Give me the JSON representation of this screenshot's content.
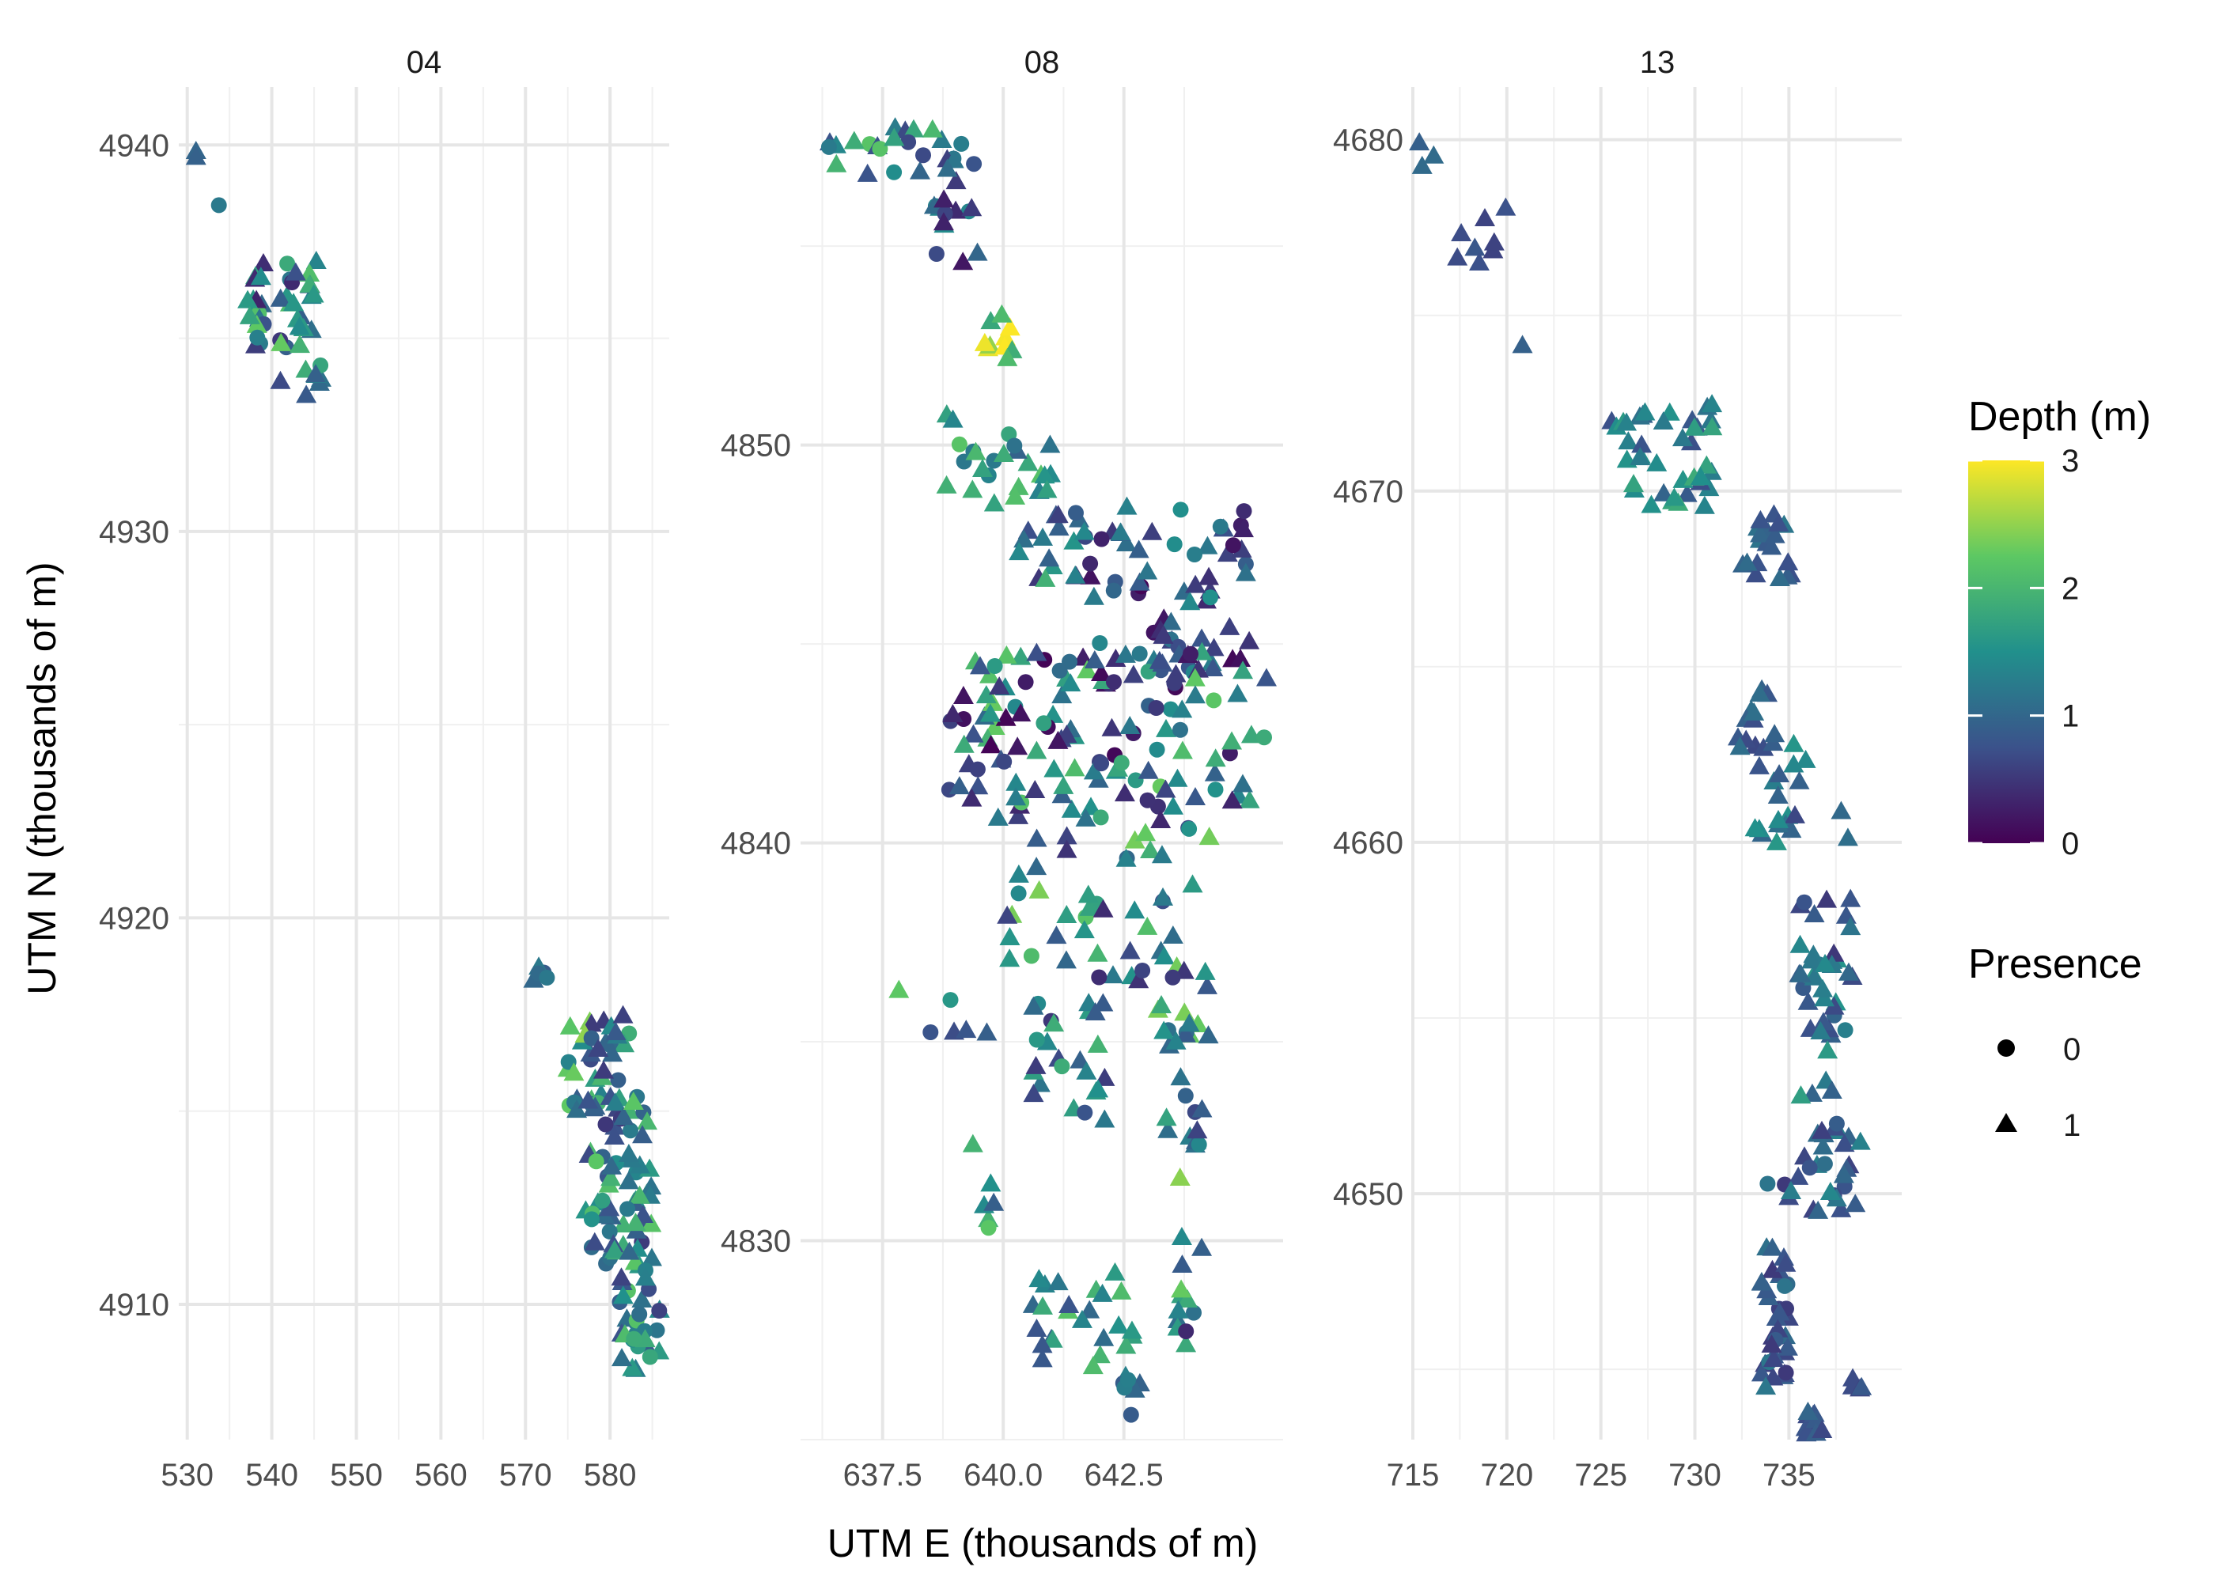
{
  "colors": {
    "viridis": [
      "#440154",
      "#3b528b",
      "#21908c",
      "#5dc863",
      "#fde725"
    ],
    "grid_major": "#e6e6e6",
    "grid_minor": "#f0f0f0"
  },
  "chart_data": {
    "type": "scatter",
    "xlabel": "UTM E (thousands of m)",
    "ylabel": "UTM N (thousands of m)",
    "grid": true,
    "legend": {
      "position": "right",
      "color": {
        "title": "Depth (m)",
        "min": 0,
        "max": 3,
        "ticks": [
          "0",
          "1",
          "2",
          "3"
        ]
      },
      "shape": {
        "title": "Presence",
        "entries": [
          {
            "label": "0",
            "shape": "circle"
          },
          {
            "label": "1",
            "shape": "triangle"
          }
        ]
      }
    },
    "panels": [
      {
        "title": "04",
        "xlim": [
          529,
          587
        ],
        "ylim": [
          4906.5,
          4941.5
        ],
        "xticks": [
          530,
          540,
          550,
          560,
          570,
          580
        ],
        "xtick_labels": [
          "530",
          "540",
          "550",
          "560",
          "570",
          "580"
        ],
        "yticks": [
          4910,
          4920,
          4930,
          4940
        ],
        "ytick_labels": [
          "4910",
          "4920",
          "4930",
          "4940"
        ],
        "clusters": [
          {
            "x": [
              530.5,
              531.5
            ],
            "y": [
              4939.3,
              4939.9
            ],
            "n": 2,
            "depth": [
              0.8,
              1.1
            ],
            "shape": "tri"
          },
          {
            "x": [
              533.5,
              534.5
            ],
            "y": [
              4938.3,
              4938.7
            ],
            "n": 1,
            "depth": [
              1.1,
              1.3
            ],
            "shape": "circle"
          },
          {
            "x": [
              537,
              545.5
            ],
            "y": [
              4934.5,
              4937.0
            ],
            "n": 40,
            "depth": [
              0.3,
              2.3
            ],
            "shape": "mixed"
          },
          {
            "x": [
              541,
              546
            ],
            "y": [
              4933.3,
              4934.4
            ],
            "n": 8,
            "depth": [
              0.4,
              1.9
            ],
            "shape": "mixed"
          },
          {
            "x": [
              570.5,
              573
            ],
            "y": [
              4918.2,
              4919.0
            ],
            "n": 5,
            "depth": [
              0.8,
              1.3
            ],
            "shape": "mixed"
          },
          {
            "x": [
              575,
              583
            ],
            "y": [
              4915.0,
              4917.5
            ],
            "n": 35,
            "depth": [
              0.5,
              2.5
            ],
            "shape": "mixed"
          },
          {
            "x": [
              577,
              585
            ],
            "y": [
              4911.0,
              4915.5
            ],
            "n": 70,
            "depth": [
              0.5,
              2.3
            ],
            "shape": "mixed"
          },
          {
            "x": [
              581,
              586
            ],
            "y": [
              4908.3,
              4911.0
            ],
            "n": 30,
            "depth": [
              0.6,
              2.2
            ],
            "shape": "mixed"
          }
        ]
      },
      {
        "title": "08",
        "xlim": [
          635.8,
          645.8
        ],
        "ylim": [
          4825.0,
          4859.0
        ],
        "xticks": [
          637.5,
          640.0,
          642.5
        ],
        "xtick_labels": [
          "637.5",
          "640.0",
          "642.5"
        ],
        "yticks": [
          4830,
          4840,
          4850
        ],
        "ytick_labels": [
          "4830",
          "4840",
          "4850"
        ],
        "clusters": [
          {
            "x": [
              636.3,
              639.5
            ],
            "y": [
              4856.8,
              4858.0
            ],
            "n": 22,
            "depth": [
              0.3,
              2.3
            ],
            "shape": "mixed"
          },
          {
            "x": [
              638.5,
              639.5
            ],
            "y": [
              4855.5,
              4857.2
            ],
            "n": 14,
            "depth": [
              0.0,
              1.5
            ],
            "shape": "mixed"
          },
          {
            "x": [
              638.3,
              640.0
            ],
            "y": [
              4854.5,
              4855.3
            ],
            "n": 3,
            "depth": [
              0.0,
              1.0
            ],
            "shape": "mixed"
          },
          {
            "x": [
              639.6,
              640.3
            ],
            "y": [
              4852.0,
              4853.3
            ],
            "n": 10,
            "depth": [
              1.8,
              3.0
            ],
            "shape": "tri"
          },
          {
            "x": [
              638.8,
              641.0
            ],
            "y": [
              4848.5,
              4850.8
            ],
            "n": 25,
            "depth": [
              0.8,
              2.2
            ],
            "shape": "mixed"
          },
          {
            "x": [
              640.3,
              641.5
            ],
            "y": [
              4846.5,
              4848.3
            ],
            "n": 12,
            "depth": [
              0.3,
              2.0
            ],
            "shape": "mixed"
          },
          {
            "x": [
              641.3,
              645.2
            ],
            "y": [
              4844.2,
              4848.5
            ],
            "n": 70,
            "depth": [
              0.0,
              1.5
            ],
            "shape": "mixed"
          },
          {
            "x": [
              638.8,
              645.5
            ],
            "y": [
              4840.5,
              4844.8
            ],
            "n": 130,
            "depth": [
              0.0,
              2.3
            ],
            "shape": "mixed"
          },
          {
            "x": [
              640.0,
              644.5
            ],
            "y": [
              4836.5,
              4840.5
            ],
            "n": 45,
            "depth": [
              0.4,
              2.4
            ],
            "shape": "mixed"
          },
          {
            "x": [
              637.8,
              639.8
            ],
            "y": [
              4834.5,
              4838.5
            ],
            "n": 6,
            "depth": [
              0.2,
              2.3
            ],
            "shape": "mixed"
          },
          {
            "x": [
              640.5,
              642.2
            ],
            "y": [
              4833.0,
              4836.0
            ],
            "n": 25,
            "depth": [
              0.4,
              2.0
            ],
            "shape": "mixed"
          },
          {
            "x": [
              643.2,
              644.3
            ],
            "y": [
              4831.5,
              4837.0
            ],
            "n": 30,
            "depth": [
              0.4,
              2.5
            ],
            "shape": "mixed"
          },
          {
            "x": [
              639.3,
              639.9
            ],
            "y": [
              4829.8,
              4832.5
            ],
            "n": 6,
            "depth": [
              0.8,
              2.3
            ],
            "shape": "mixed"
          },
          {
            "x": [
              640.5,
              642.8
            ],
            "y": [
              4826.8,
              4829.2
            ],
            "n": 25,
            "depth": [
              0.7,
              2.3
            ],
            "shape": "tri"
          },
          {
            "x": [
              642.4,
              643.0
            ],
            "y": [
              4825.6,
              4826.8
            ],
            "n": 8,
            "depth": [
              0.8,
              1.6
            ],
            "shape": "mixed"
          },
          {
            "x": [
              643.6,
              644.3
            ],
            "y": [
              4827.3,
              4830.5
            ],
            "n": 12,
            "depth": [
              0.2,
              2.5
            ],
            "shape": "mixed"
          }
        ]
      },
      {
        "title": "13",
        "xlim": [
          715,
          741
        ],
        "ylim": [
          4643.0,
          4681.5
        ],
        "xticks": [
          715,
          720,
          725,
          730,
          735
        ],
        "xtick_labels": [
          "715",
          "720",
          "725",
          "730",
          "735"
        ],
        "yticks": [
          4650,
          4660,
          4670,
          4680
        ],
        "ytick_labels": [
          "4650",
          "4660",
          "4670",
          "4680"
        ],
        "clusters": [
          {
            "x": [
              715.2,
              716.2
            ],
            "y": [
              4679.0,
              4680.0
            ],
            "n": 3,
            "depth": [
              0.8,
              1.2
            ],
            "shape": "tri"
          },
          {
            "x": [
              717.0,
              720.3
            ],
            "y": [
              4676.3,
              4678.3
            ],
            "n": 8,
            "depth": [
              0.6,
              1.0
            ],
            "shape": "tri"
          },
          {
            "x": [
              720.6,
              721.2
            ],
            "y": [
              4674.0,
              4674.4
            ],
            "n": 1,
            "depth": [
              0.8,
              1.0
            ],
            "shape": "tri"
          },
          {
            "x": [
              725.5,
              731.0
            ],
            "y": [
              4669.5,
              4672.5
            ],
            "n": 40,
            "depth": [
              0.7,
              1.9
            ],
            "shape": "tri"
          },
          {
            "x": [
              732.5,
              735.2
            ],
            "y": [
              4667.5,
              4669.5
            ],
            "n": 20,
            "depth": [
              0.7,
              1.2
            ],
            "shape": "tri"
          },
          {
            "x": [
              732.0,
              734.5
            ],
            "y": [
              4662.0,
              4664.5
            ],
            "n": 15,
            "depth": [
              0.6,
              1.1
            ],
            "shape": "tri"
          },
          {
            "x": [
              733.0,
              736.2
            ],
            "y": [
              4660.0,
              4662.8
            ],
            "n": 18,
            "depth": [
              0.6,
              1.6
            ],
            "shape": "tri"
          },
          {
            "x": [
              737.4,
              738.2
            ],
            "y": [
              4660.0,
              4661.0
            ],
            "n": 2,
            "depth": [
              1.0,
              1.3
            ],
            "shape": "mixed"
          },
          {
            "x": [
              735.5,
              738.5
            ],
            "y": [
              4654.5,
              4658.5
            ],
            "n": 35,
            "depth": [
              0.5,
              1.6
            ],
            "shape": "mixed"
          },
          {
            "x": [
              734.5,
              737.5
            ],
            "y": [
              4652.5,
              4654.2
            ],
            "n": 5,
            "depth": [
              0.6,
              1.8
            ],
            "shape": "tri"
          },
          {
            "x": [
              733.5,
              739.0
            ],
            "y": [
              4649.5,
              4652.0
            ],
            "n": 30,
            "depth": [
              0.5,
              1.4
            ],
            "shape": "mixed"
          },
          {
            "x": [
              733.5,
              735.0
            ],
            "y": [
              4644.5,
              4649.0
            ],
            "n": 35,
            "depth": [
              0.5,
              1.2
            ],
            "shape": "mixed"
          },
          {
            "x": [
              735.8,
              737.5
            ],
            "y": [
              4643.1,
              4643.9
            ],
            "n": 10,
            "depth": [
              0.6,
              1.0
            ],
            "shape": "tri"
          },
          {
            "x": [
              738.3,
              739.0
            ],
            "y": [
              4643.8,
              4645.0
            ],
            "n": 4,
            "depth": [
              0.6,
              1.0
            ],
            "shape": "mixed"
          }
        ]
      }
    ]
  }
}
